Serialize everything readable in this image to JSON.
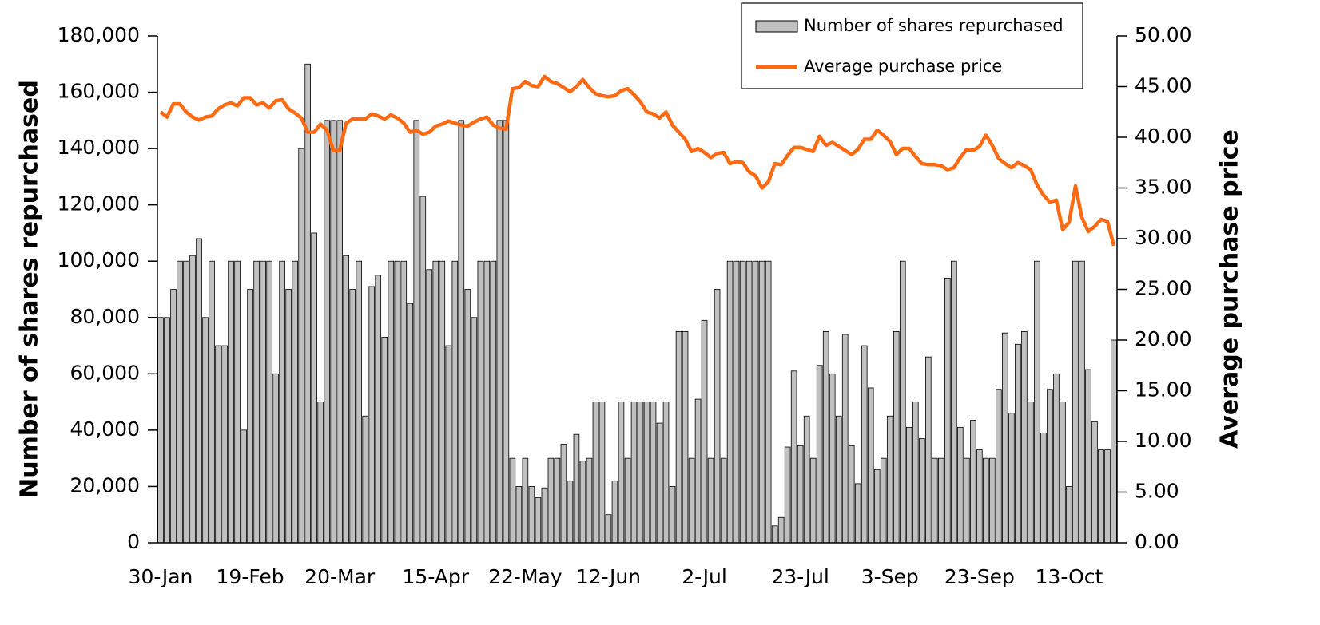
{
  "chart_data": {
    "type": "bar_line",
    "categories": [
      "30-Jan",
      null,
      null,
      null,
      null,
      null,
      null,
      null,
      null,
      null,
      null,
      null,
      null,
      null,
      "19-Feb",
      null,
      null,
      null,
      null,
      null,
      null,
      null,
      null,
      null,
      null,
      null,
      null,
      null,
      "20-Mar",
      null,
      null,
      null,
      null,
      null,
      null,
      null,
      null,
      null,
      null,
      null,
      null,
      null,
      null,
      "15-Apr",
      null,
      null,
      null,
      null,
      null,
      null,
      null,
      null,
      null,
      null,
      null,
      null,
      null,
      "22-May",
      null,
      null,
      null,
      null,
      null,
      null,
      null,
      null,
      null,
      null,
      null,
      null,
      "12-Jun",
      null,
      null,
      null,
      null,
      null,
      null,
      null,
      null,
      null,
      null,
      null,
      null,
      null,
      null,
      "2-Jul",
      null,
      null,
      null,
      null,
      null,
      null,
      null,
      null,
      null,
      null,
      null,
      null,
      null,
      null,
      "23-Jul",
      null,
      null,
      null,
      null,
      null,
      null,
      null,
      null,
      null,
      null,
      null,
      null,
      null,
      "3-Sep",
      null,
      null,
      null,
      null,
      null,
      null,
      null,
      null,
      null,
      null,
      null,
      null,
      null,
      "23-Sep",
      null,
      null,
      null,
      null,
      null,
      null,
      null,
      null,
      null,
      null,
      null,
      null,
      null,
      "13-Oct",
      null,
      null,
      null,
      null,
      null,
      null,
      null
    ],
    "series": [
      {
        "name": "Number of shares repurchased",
        "type": "bar",
        "color": "#c0c0c0",
        "axis": "y",
        "values": [
          80000,
          80000,
          90000,
          100000,
          100000,
          102000,
          108000,
          80000,
          100000,
          70000,
          70000,
          100000,
          100000,
          40000,
          90000,
          100000,
          100000,
          100000,
          60000,
          100000,
          90000,
          100000,
          140000,
          170000,
          110000,
          50000,
          150000,
          150000,
          150000,
          102000,
          90000,
          100000,
          45000,
          91000,
          95000,
          73000,
          100000,
          100000,
          100000,
          85000,
          150000,
          123000,
          97000,
          100000,
          100000,
          70000,
          100000,
          150000,
          90000,
          80000,
          100000,
          100000,
          100000,
          150000,
          150000,
          30000,
          20000,
          30000,
          20000,
          16000,
          19500,
          30000,
          30000,
          35000,
          22000,
          38500,
          29000,
          30000,
          50000,
          50000,
          10000,
          22000,
          50000,
          30000,
          50000,
          50000,
          50000,
          50000,
          42500,
          50000,
          20000,
          75000,
          75000,
          30000,
          51000,
          79000,
          30000,
          90000,
          30000,
          100000,
          100000,
          100000,
          100000,
          100000,
          100000,
          100000,
          6000,
          9000,
          34000,
          61000,
          34500,
          45000,
          30000,
          63000,
          75000,
          60000,
          45000,
          74000,
          34500,
          21000,
          70000,
          55000,
          26000,
          30000,
          45000,
          75000,
          100000,
          41000,
          50000,
          37000,
          66000,
          30000,
          30000,
          94000,
          100000,
          41000,
          30000,
          43500,
          33000,
          30000,
          30000,
          54500,
          74500,
          46000,
          70500,
          75000,
          50000,
          100000,
          39000,
          54500,
          60000,
          50000,
          20000,
          100000,
          100000,
          61500,
          43000,
          33000,
          33000,
          72000
        ]
      },
      {
        "name": "Average purchase price",
        "type": "line",
        "color": "#ff6a13",
        "axis": "y2",
        "values": [
          42.5,
          42,
          43.3,
          43.3,
          42.5,
          42,
          41.7,
          42,
          42.1,
          42.8,
          43.2,
          43.4,
          43.1,
          43.9,
          43.9,
          43.2,
          43.4,
          42.9,
          43.6,
          43.7,
          42.8,
          42.4,
          41.9,
          40.5,
          40.5,
          41.3,
          40.7,
          38.7,
          38.7,
          41.4,
          41.8,
          41.8,
          41.8,
          42.3,
          42.1,
          41.8,
          42.2,
          41.9,
          41.4,
          40.5,
          40.7,
          40.3,
          40.5,
          41.1,
          41.3,
          41.6,
          41.4,
          41.2,
          41.1,
          41.5,
          41.8,
          42,
          41.2,
          40.9,
          40.8,
          44.8,
          44.9,
          45.5,
          45.1,
          45,
          46,
          45.5,
          45.3,
          44.9,
          44.5,
          45,
          45.7,
          44.9,
          44.3,
          44.1,
          44,
          44.1,
          44.6,
          44.8,
          44.2,
          43.5,
          42.5,
          42.3,
          41.9,
          42.5,
          41.2,
          40.5,
          39.8,
          38.6,
          38.9,
          38.5,
          38,
          38.4,
          38.5,
          37.4,
          37.6,
          37.5,
          36.6,
          36.2,
          35,
          35.6,
          37.4,
          37.3,
          38.2,
          39,
          39,
          38.8,
          38.6,
          40.1,
          39.2,
          39.5,
          39.1,
          38.7,
          38.3,
          38.8,
          39.8,
          39.8,
          40.7,
          40.2,
          39.6,
          38.3,
          38.9,
          38.9,
          38.1,
          37.4,
          37.3,
          37.3,
          37.2,
          36.8,
          37,
          38,
          38.8,
          38.7,
          39.1,
          40.2,
          39.2,
          37.9,
          37.4,
          37,
          37.5,
          37.2,
          36.8,
          35.3,
          34.3,
          33.6,
          33.8,
          30.9,
          31.6,
          35.2,
          32.1,
          30.7,
          31.2,
          31.9,
          31.7,
          29.3
        ]
      }
    ],
    "ylabel": "Number of shares repurchased",
    "y2label": "Average purchase price",
    "ylim": [
      0,
      180000
    ],
    "yticks": [
      0,
      {
        "value": 20000,
        "label": "20,000"
      },
      {
        "value": 40000,
        "label": "40,000"
      },
      {
        "value": 60000,
        "label": "60,000"
      },
      {
        "value": 80000,
        "label": "80,000"
      },
      {
        "value": 100000,
        "label": "100,000"
      },
      {
        "value": 120000,
        "label": "120,000"
      },
      {
        "value": 140000,
        "label": "140,000"
      },
      {
        "value": 160000,
        "label": "160,000"
      },
      {
        "value": 180000,
        "label": "180,000"
      }
    ],
    "y2lim": [
      0,
      50
    ],
    "y2ticks": [
      {
        "value": 0,
        "label": "0.00"
      },
      {
        "value": 5,
        "label": "5.00"
      },
      {
        "value": 10,
        "label": "10.00"
      },
      {
        "value": 15,
        "label": "15.00"
      },
      {
        "value": 20,
        "label": "20.00"
      },
      {
        "value": 25,
        "label": "25.00"
      },
      {
        "value": 30,
        "label": "30.00"
      },
      {
        "value": 35,
        "label": "35.00"
      },
      {
        "value": 40,
        "label": "40.00"
      },
      {
        "value": 45,
        "label": "45.00"
      },
      {
        "value": 50,
        "label": "50.00"
      }
    ],
    "grid": false,
    "legend": "top-right"
  }
}
